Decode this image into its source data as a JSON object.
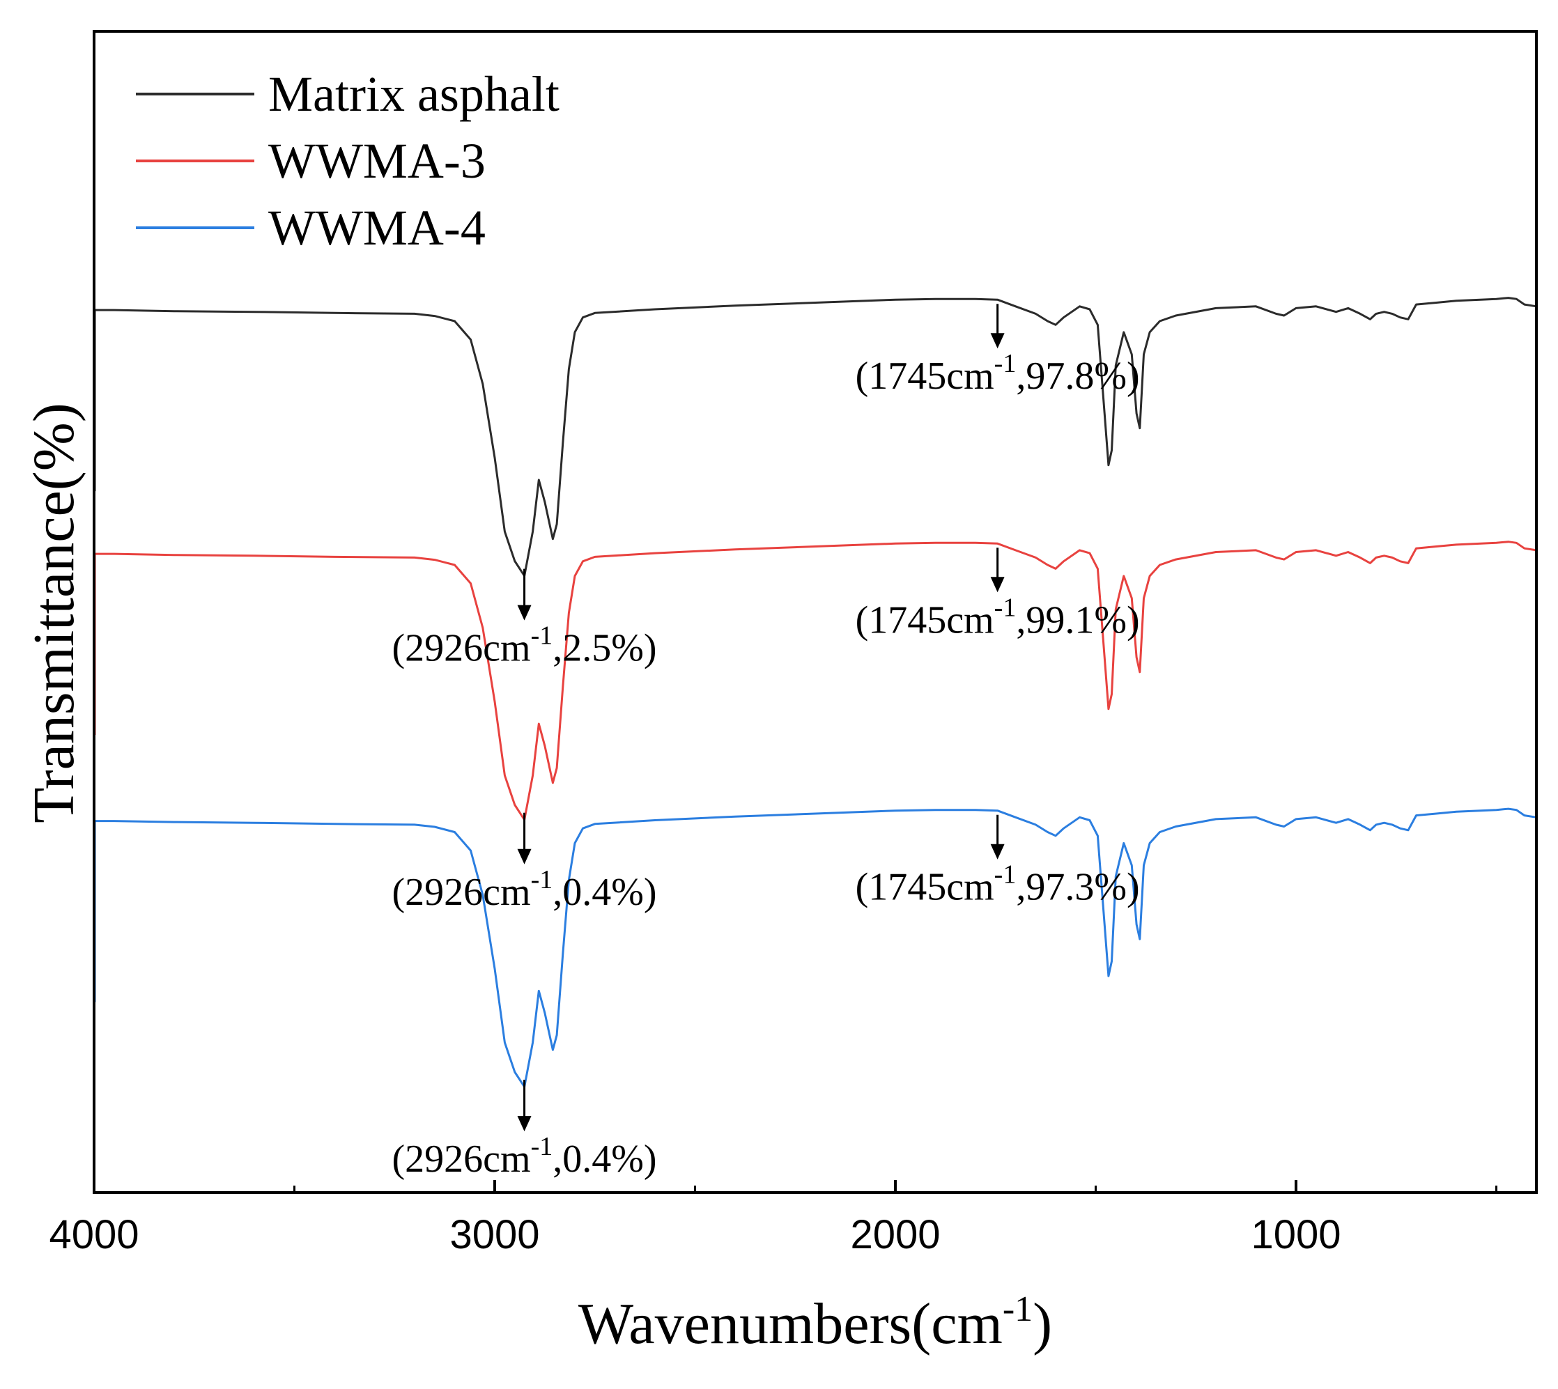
{
  "chart_data": {
    "type": "line",
    "xlabel": "Wavenumbers(cm",
    "xlabel_sup": "-1",
    "xlabel_close": ")",
    "ylabel": "Transmittance(%)",
    "xlim": [
      4000,
      400
    ],
    "x_reversed": true,
    "x_ticks": [
      4000,
      3000,
      2000,
      1000
    ],
    "y_ticks_shown": false,
    "legend_position": "top-left",
    "series": [
      {
        "name": "Matrix asphalt",
        "color": "#2b2b2b",
        "baseline_level": 0.76,
        "points": [
          [
            4000,
            0.0
          ],
          [
            3950,
            0.0
          ],
          [
            3800,
            -0.3
          ],
          [
            3600,
            -0.5
          ],
          [
            3400,
            -0.8
          ],
          [
            3200,
            -1.0
          ],
          [
            3150,
            -1.6
          ],
          [
            3100,
            -3
          ],
          [
            3060,
            -8
          ],
          [
            3030,
            -20
          ],
          [
            3000,
            -40
          ],
          [
            2975,
            -60
          ],
          [
            2950,
            -68
          ],
          [
            2926,
            -72
          ],
          [
            2905,
            -60
          ],
          [
            2890,
            -46
          ],
          [
            2875,
            -52
          ],
          [
            2855,
            -62
          ],
          [
            2845,
            -58
          ],
          [
            2830,
            -36
          ],
          [
            2815,
            -16
          ],
          [
            2800,
            -6
          ],
          [
            2780,
            -2
          ],
          [
            2750,
            -0.8
          ],
          [
            2600,
            0.2
          ],
          [
            2400,
            1.2
          ],
          [
            2200,
            2.0
          ],
          [
            2000,
            2.8
          ],
          [
            1900,
            3.0
          ],
          [
            1800,
            3.0
          ],
          [
            1745,
            2.8
          ],
          [
            1700,
            1.0
          ],
          [
            1650,
            -1
          ],
          [
            1620,
            -3
          ],
          [
            1600,
            -4
          ],
          [
            1580,
            -2
          ],
          [
            1540,
            1.0
          ],
          [
            1515,
            0.2
          ],
          [
            1495,
            -4
          ],
          [
            1480,
            -25
          ],
          [
            1468,
            -42
          ],
          [
            1460,
            -38
          ],
          [
            1450,
            -15
          ],
          [
            1430,
            -6
          ],
          [
            1410,
            -12
          ],
          [
            1398,
            -28
          ],
          [
            1390,
            -32
          ],
          [
            1380,
            -12
          ],
          [
            1365,
            -6
          ],
          [
            1340,
            -3
          ],
          [
            1300,
            -1.5
          ],
          [
            1200,
            0.5
          ],
          [
            1100,
            1.0
          ],
          [
            1050,
            -1.0
          ],
          [
            1030,
            -1.5
          ],
          [
            1000,
            0.5
          ],
          [
            950,
            1.0
          ],
          [
            900,
            -0.5
          ],
          [
            870,
            0.5
          ],
          [
            840,
            -1.0
          ],
          [
            815,
            -2.5
          ],
          [
            800,
            -1.0
          ],
          [
            780,
            -0.5
          ],
          [
            760,
            -1.0
          ],
          [
            740,
            -2.0
          ],
          [
            720,
            -2.5
          ],
          [
            700,
            1.5
          ],
          [
            650,
            2.0
          ],
          [
            600,
            2.5
          ],
          [
            500,
            3.0
          ],
          [
            470,
            3.3
          ],
          [
            450,
            3.0
          ],
          [
            430,
            1.5
          ],
          [
            400,
            1.0
          ]
        ],
        "annotations": [
          {
            "x": 2926,
            "label": "(2926cm",
            "sup": "-1",
            "tail": ",2.5%)"
          },
          {
            "x": 1745,
            "label": "(1745cm",
            "sup": "-1",
            "tail": ",97.8%)"
          }
        ]
      },
      {
        "name": "WWMA-3",
        "color": "#e8423f",
        "baseline_level": 0.55,
        "points": [
          [
            4000,
            0.0
          ],
          [
            3950,
            0.0
          ],
          [
            3800,
            -0.3
          ],
          [
            3600,
            -0.5
          ],
          [
            3400,
            -0.8
          ],
          [
            3200,
            -1.0
          ],
          [
            3150,
            -1.6
          ],
          [
            3100,
            -3
          ],
          [
            3060,
            -8
          ],
          [
            3030,
            -20
          ],
          [
            3000,
            -40
          ],
          [
            2975,
            -60
          ],
          [
            2950,
            -68
          ],
          [
            2926,
            -72
          ],
          [
            2905,
            -60
          ],
          [
            2890,
            -46
          ],
          [
            2875,
            -52
          ],
          [
            2855,
            -62
          ],
          [
            2845,
            -58
          ],
          [
            2830,
            -36
          ],
          [
            2815,
            -16
          ],
          [
            2800,
            -6
          ],
          [
            2780,
            -2
          ],
          [
            2750,
            -0.8
          ],
          [
            2600,
            0.2
          ],
          [
            2400,
            1.2
          ],
          [
            2200,
            2.0
          ],
          [
            2000,
            2.8
          ],
          [
            1900,
            3.0
          ],
          [
            1800,
            3.0
          ],
          [
            1745,
            2.8
          ],
          [
            1700,
            1.0
          ],
          [
            1650,
            -1
          ],
          [
            1620,
            -3
          ],
          [
            1600,
            -4
          ],
          [
            1580,
            -2
          ],
          [
            1540,
            1.0
          ],
          [
            1515,
            0.2
          ],
          [
            1495,
            -4
          ],
          [
            1480,
            -25
          ],
          [
            1468,
            -42
          ],
          [
            1460,
            -38
          ],
          [
            1450,
            -15
          ],
          [
            1430,
            -6
          ],
          [
            1410,
            -12
          ],
          [
            1398,
            -28
          ],
          [
            1390,
            -32
          ],
          [
            1380,
            -12
          ],
          [
            1365,
            -6
          ],
          [
            1340,
            -3
          ],
          [
            1300,
            -1.5
          ],
          [
            1200,
            0.5
          ],
          [
            1100,
            1.0
          ],
          [
            1050,
            -1.0
          ],
          [
            1030,
            -1.5
          ],
          [
            1000,
            0.5
          ],
          [
            950,
            1.0
          ],
          [
            900,
            -0.5
          ],
          [
            870,
            0.5
          ],
          [
            840,
            -1.0
          ],
          [
            815,
            -2.5
          ],
          [
            800,
            -1.0
          ],
          [
            780,
            -0.5
          ],
          [
            760,
            -1.0
          ],
          [
            740,
            -2.0
          ],
          [
            720,
            -2.5
          ],
          [
            700,
            1.5
          ],
          [
            650,
            2.0
          ],
          [
            600,
            2.5
          ],
          [
            500,
            3.0
          ],
          [
            470,
            3.3
          ],
          [
            450,
            3.0
          ],
          [
            430,
            1.5
          ],
          [
            400,
            1.0
          ]
        ],
        "annotations": [
          {
            "x": 2926,
            "label": "(2926cm",
            "sup": "-1",
            "tail": ",0.4%)"
          },
          {
            "x": 1745,
            "label": "(1745cm",
            "sup": "-1",
            "tail": ",99.1%)"
          }
        ]
      },
      {
        "name": "WWMA-4",
        "color": "#2b7ee0",
        "baseline_level": 0.32,
        "points": [
          [
            4000,
            0.0
          ],
          [
            3950,
            0.0
          ],
          [
            3800,
            -0.3
          ],
          [
            3600,
            -0.5
          ],
          [
            3400,
            -0.8
          ],
          [
            3200,
            -1.0
          ],
          [
            3150,
            -1.6
          ],
          [
            3100,
            -3
          ],
          [
            3060,
            -8
          ],
          [
            3030,
            -20
          ],
          [
            3000,
            -40
          ],
          [
            2975,
            -60
          ],
          [
            2950,
            -68
          ],
          [
            2926,
            -72
          ],
          [
            2905,
            -60
          ],
          [
            2890,
            -46
          ],
          [
            2875,
            -52
          ],
          [
            2855,
            -62
          ],
          [
            2845,
            -58
          ],
          [
            2830,
            -36
          ],
          [
            2815,
            -16
          ],
          [
            2800,
            -6
          ],
          [
            2780,
            -2
          ],
          [
            2750,
            -0.8
          ],
          [
            2600,
            0.2
          ],
          [
            2400,
            1.2
          ],
          [
            2200,
            2.0
          ],
          [
            2000,
            2.8
          ],
          [
            1900,
            3.0
          ],
          [
            1800,
            3.0
          ],
          [
            1745,
            2.8
          ],
          [
            1700,
            1.0
          ],
          [
            1650,
            -1
          ],
          [
            1620,
            -3
          ],
          [
            1600,
            -4
          ],
          [
            1580,
            -2
          ],
          [
            1540,
            1.0
          ],
          [
            1515,
            0.2
          ],
          [
            1495,
            -4
          ],
          [
            1480,
            -25
          ],
          [
            1468,
            -42
          ],
          [
            1460,
            -38
          ],
          [
            1450,
            -15
          ],
          [
            1430,
            -6
          ],
          [
            1410,
            -12
          ],
          [
            1398,
            -28
          ],
          [
            1390,
            -32
          ],
          [
            1380,
            -12
          ],
          [
            1365,
            -6
          ],
          [
            1340,
            -3
          ],
          [
            1300,
            -1.5
          ],
          [
            1200,
            0.5
          ],
          [
            1100,
            1.0
          ],
          [
            1050,
            -1.0
          ],
          [
            1030,
            -1.5
          ],
          [
            1000,
            0.5
          ],
          [
            950,
            1.0
          ],
          [
            900,
            -0.5
          ],
          [
            870,
            0.5
          ],
          [
            840,
            -1.0
          ],
          [
            815,
            -2.5
          ],
          [
            800,
            -1.0
          ],
          [
            780,
            -0.5
          ],
          [
            760,
            -1.0
          ],
          [
            740,
            -2.0
          ],
          [
            720,
            -2.5
          ],
          [
            700,
            1.5
          ],
          [
            650,
            2.0
          ],
          [
            600,
            2.5
          ],
          [
            500,
            3.0
          ],
          [
            470,
            3.3
          ],
          [
            450,
            3.0
          ],
          [
            430,
            1.5
          ],
          [
            400,
            1.0
          ]
        ],
        "annotations": [
          {
            "x": 2926,
            "label": "(2926cm",
            "sup": "-1",
            "tail": ",0.4%)"
          },
          {
            "x": 1745,
            "label": "(1745cm",
            "sup": "-1",
            "tail": ",97.3%)"
          }
        ]
      }
    ]
  }
}
